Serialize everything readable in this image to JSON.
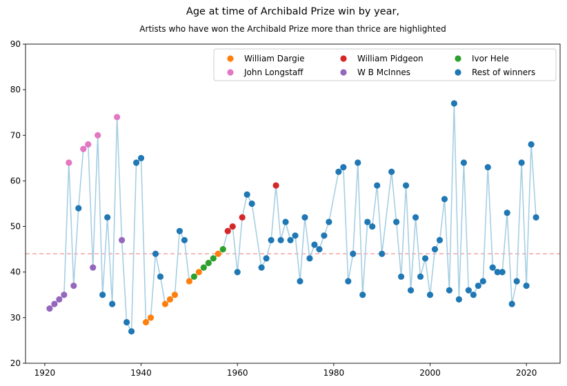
{
  "chart_data": {
    "type": "line",
    "title": "Age at time of Archibald Prize win by year,",
    "subtitle": "Artists who have won the Archibald Prize more than thrice are highlighted",
    "xlabel": "",
    "ylabel": "",
    "xlim": [
      1916,
      2027
    ],
    "ylim": [
      20,
      90
    ],
    "xticks": [
      1920,
      1940,
      1960,
      1980,
      2000,
      2020
    ],
    "yticks": [
      20,
      30,
      40,
      50,
      60,
      70,
      80,
      90
    ],
    "grid": false,
    "legend_position": "top-right",
    "reference_line": {
      "y": 44,
      "color": "#f4a3a3",
      "style": "dashed"
    },
    "line_color": "#a6cee3",
    "series": [
      {
        "name": "William Dargie",
        "color": "#ff7f0e",
        "points": [
          [
            1941,
            29
          ],
          [
            1942,
            30
          ],
          [
            1945,
            33
          ],
          [
            1946,
            34
          ],
          [
            1947,
            35
          ],
          [
            1950,
            38
          ],
          [
            1952,
            40
          ],
          [
            1956,
            44
          ]
        ]
      },
      {
        "name": "W B McInnes",
        "color": "#9467bd",
        "points": [
          [
            1921,
            32
          ],
          [
            1922,
            33
          ],
          [
            1923,
            34
          ],
          [
            1924,
            35
          ],
          [
            1926,
            37
          ],
          [
            1930,
            41
          ],
          [
            1936,
            47
          ]
        ]
      },
      {
        "name": "John Longstaff",
        "color": "#e377c2",
        "points": [
          [
            1925,
            64
          ],
          [
            1928,
            67
          ],
          [
            1929,
            68
          ],
          [
            1931,
            70
          ],
          [
            1935,
            74
          ]
        ]
      },
      {
        "name": "Ivor Hele",
        "color": "#2ca02c",
        "points": [
          [
            1951,
            39
          ],
          [
            1953,
            41
          ],
          [
            1954,
            42
          ],
          [
            1955,
            43
          ],
          [
            1957,
            45
          ]
        ]
      },
      {
        "name": "William Pidgeon",
        "color": "#d62728",
        "points": [
          [
            1958,
            49
          ],
          [
            1959,
            50
          ],
          [
            1961,
            52
          ],
          [
            1968,
            59
          ]
        ]
      },
      {
        "name": "Rest of winners",
        "color": "#1f77b4",
        "points": [
          [
            1927,
            54
          ],
          [
            1932,
            35
          ],
          [
            1933,
            52
          ],
          [
            1934,
            33
          ],
          [
            1937,
            29
          ],
          [
            1938,
            27
          ],
          [
            1939,
            64
          ],
          [
            1940,
            65
          ],
          [
            1943,
            44
          ],
          [
            1944,
            39
          ],
          [
            1948,
            49
          ],
          [
            1949,
            47
          ],
          [
            1960,
            40
          ],
          [
            1962,
            57
          ],
          [
            1963,
            55
          ],
          [
            1965,
            41
          ],
          [
            1966,
            43
          ],
          [
            1967,
            47
          ],
          [
            1969,
            47
          ],
          [
            1970,
            51
          ],
          [
            1971,
            47
          ],
          [
            1972,
            48
          ],
          [
            1973,
            38
          ],
          [
            1974,
            52
          ],
          [
            1975,
            43
          ],
          [
            1976,
            46
          ],
          [
            1977,
            45
          ],
          [
            1978,
            48
          ],
          [
            1979,
            51
          ],
          [
            1981,
            62
          ],
          [
            1982,
            63
          ],
          [
            1983,
            38
          ],
          [
            1984,
            44
          ],
          [
            1985,
            64
          ],
          [
            1986,
            35
          ],
          [
            1987,
            51
          ],
          [
            1988,
            50
          ],
          [
            1989,
            59
          ],
          [
            1990,
            44
          ],
          [
            1992,
            62
          ],
          [
            1993,
            51
          ],
          [
            1994,
            39
          ],
          [
            1995,
            59
          ],
          [
            1996,
            36
          ],
          [
            1997,
            52
          ],
          [
            1998,
            39
          ],
          [
            1999,
            43
          ],
          [
            2000,
            35
          ],
          [
            2001,
            45
          ],
          [
            2002,
            47
          ],
          [
            2003,
            56
          ],
          [
            2004,
            36
          ],
          [
            2005,
            77
          ],
          [
            2006,
            34
          ],
          [
            2007,
            64
          ],
          [
            2008,
            36
          ],
          [
            2009,
            35
          ],
          [
            2010,
            37
          ],
          [
            2011,
            38
          ],
          [
            2012,
            63
          ],
          [
            2013,
            41
          ],
          [
            2014,
            40
          ],
          [
            2015,
            40
          ],
          [
            2016,
            53
          ],
          [
            2017,
            33
          ],
          [
            2018,
            38
          ],
          [
            2019,
            64
          ],
          [
            2020,
            37
          ],
          [
            2021,
            68
          ],
          [
            2022,
            52
          ]
        ]
      }
    ],
    "legend": [
      {
        "name": "William Dargie",
        "color": "#ff7f0e"
      },
      {
        "name": "John Longstaff",
        "color": "#e377c2"
      },
      {
        "name": "William Pidgeon",
        "color": "#d62728"
      },
      {
        "name": "W B McInnes",
        "color": "#9467bd"
      },
      {
        "name": "Ivor Hele",
        "color": "#2ca02c"
      },
      {
        "name": "Rest of winners",
        "color": "#1f77b4"
      }
    ]
  }
}
